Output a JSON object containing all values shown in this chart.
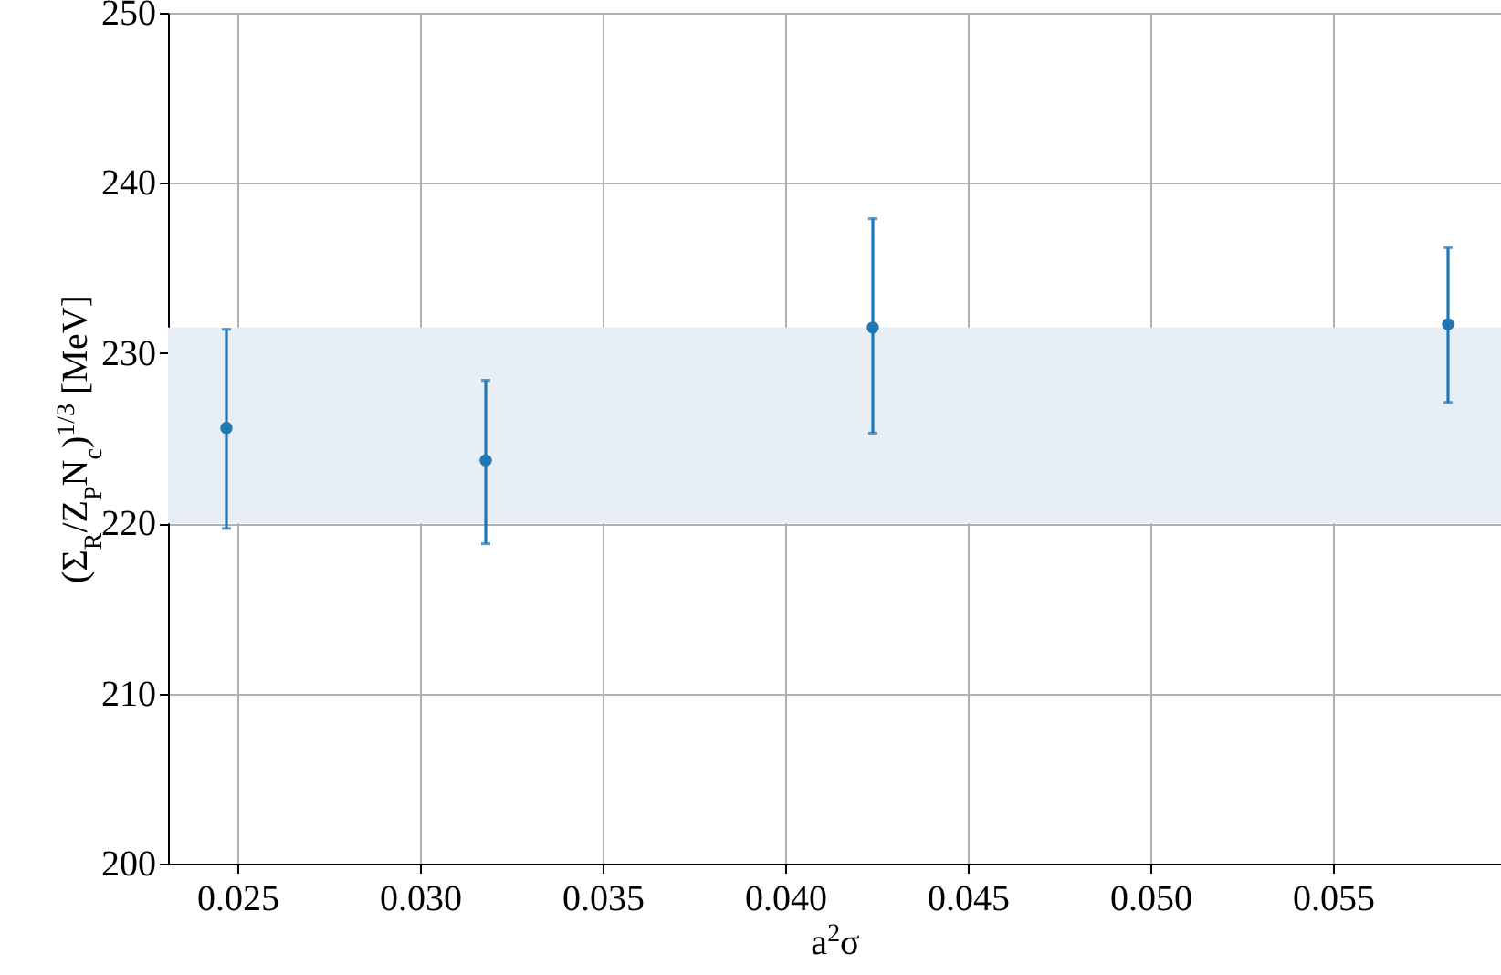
{
  "chart_data": {
    "type": "scatter",
    "xlabel": "a$^{2}$σ",
    "ylabel": "(Σ$_{R}$/Z$_{P}$N$_{c}$)$^{1/3}$ [MeV]",
    "x": [
      0.0247,
      0.0318,
      0.0424,
      0.05815
    ],
    "series": [
      {
        "color": "#1f77b4",
        "values": [
          225.6,
          223.7,
          231.5,
          231.7
        ],
        "errors": [
          [
            219.7,
            231.4
          ],
          [
            218.8,
            228.4
          ],
          [
            225.3,
            237.9
          ],
          [
            227.1,
            236.2
          ]
        ]
      }
    ],
    "bands": [
      {
        "axis": "y",
        "from": 220.0,
        "to": 231.5,
        "color": "#e8eef5"
      }
    ],
    "xlim": [
      0.0231,
      0.0596
    ],
    "xticks": [
      {
        "value": 0.025,
        "label": "0.025"
      },
      {
        "value": 0.03,
        "label": "0.030"
      },
      {
        "value": 0.035,
        "label": "0.035"
      },
      {
        "value": 0.04,
        "label": "0.040"
      },
      {
        "value": 0.045,
        "label": "0.045"
      },
      {
        "value": 0.05,
        "label": "0.050"
      },
      {
        "value": 0.055,
        "label": "0.055"
      }
    ],
    "ylim": [
      200,
      250
    ],
    "yticks": [
      200,
      210,
      220,
      230,
      240,
      250
    ],
    "grid": true,
    "marker": "circle"
  }
}
